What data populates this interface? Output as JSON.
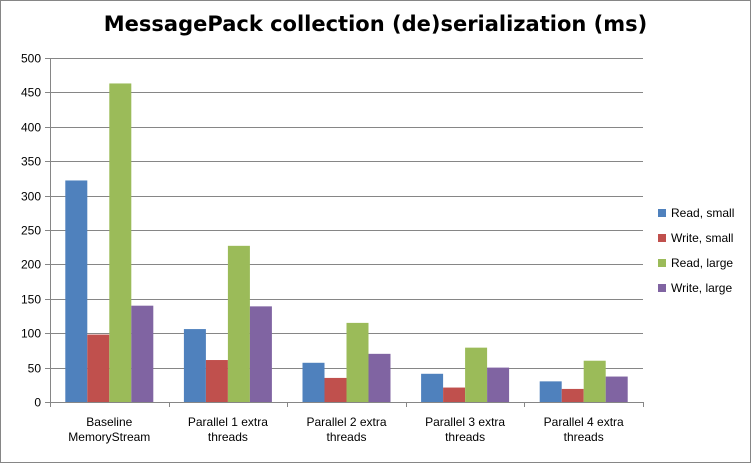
{
  "chart_data": {
    "type": "bar",
    "title": "MessagePack collection (de)serialization (ms)",
    "xlabel": "",
    "ylabel": "",
    "ylim": [
      0,
      500
    ],
    "yticks": [
      0,
      50,
      100,
      150,
      200,
      250,
      300,
      350,
      400,
      450,
      500
    ],
    "grid": true,
    "legend_position": "right",
    "categories": [
      [
        "Baseline",
        "MemoryStream"
      ],
      [
        "Parallel 1 extra",
        "threads"
      ],
      [
        "Parallel 2 extra",
        "threads"
      ],
      [
        "Parallel 3 extra",
        "threads"
      ],
      [
        "Parallel 4 extra",
        "threads"
      ]
    ],
    "series": [
      {
        "name": "Read, small",
        "color": "#4f81bd",
        "values": [
          322,
          106,
          57,
          41,
          30
        ]
      },
      {
        "name": "Write, small",
        "color": "#c0504d",
        "values": [
          98,
          61,
          35,
          21,
          19
        ]
      },
      {
        "name": "Read, large",
        "color": "#9bbb59",
        "values": [
          463,
          227,
          115,
          79,
          60
        ]
      },
      {
        "name": "Write, large",
        "color": "#8064a2",
        "values": [
          140,
          139,
          70,
          50,
          37
        ]
      }
    ]
  }
}
